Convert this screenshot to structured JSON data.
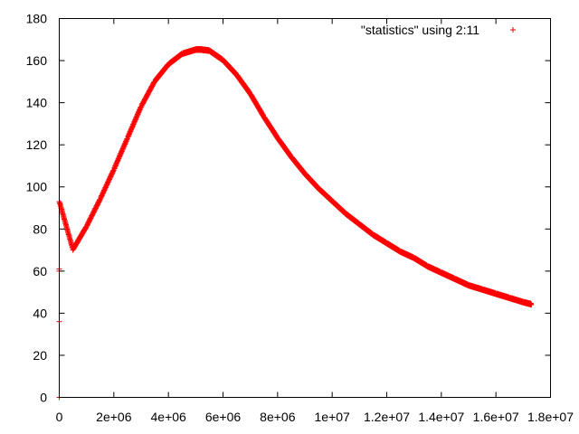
{
  "chart_data": {
    "type": "scatter",
    "title": "",
    "xlabel": "",
    "ylabel": "",
    "xlim": [
      0,
      18000000
    ],
    "ylim": [
      0,
      180
    ],
    "grid": false,
    "legend_position": "top-right",
    "marker": "plus",
    "x_ticks": [
      0,
      2000000,
      4000000,
      6000000,
      8000000,
      10000000,
      12000000,
      14000000,
      16000000,
      18000000
    ],
    "x_tick_labels": [
      "0",
      "2e+06",
      "4e+06",
      "6e+06",
      "8e+06",
      "1e+07",
      "1.2e+07",
      "1.4e+07",
      "1.6e+07",
      "1.8e+07"
    ],
    "y_ticks": [
      0,
      20,
      40,
      60,
      80,
      100,
      120,
      140,
      160,
      180
    ],
    "y_tick_labels": [
      "0",
      "20",
      "40",
      "60",
      "80",
      "100",
      "120",
      "140",
      "160",
      "180"
    ],
    "series": [
      {
        "name": "\"statistics\" using 2:11",
        "color": "#ff0000",
        "x": [
          0,
          0,
          0,
          0,
          0,
          500000,
          1000000,
          1500000,
          2000000,
          2500000,
          3000000,
          3500000,
          4000000,
          4500000,
          5000000,
          5200000,
          5500000,
          6000000,
          6500000,
          7000000,
          7500000,
          8000000,
          8500000,
          9000000,
          9500000,
          10000000,
          10500000,
          11000000,
          11500000,
          12000000,
          12500000,
          13000000,
          13500000,
          14000000,
          14500000,
          15000000,
          15500000,
          16000000,
          16500000,
          17000000,
          17300000
        ],
        "y": [
          0,
          36,
          60,
          61,
          93,
          70,
          81,
          94,
          108,
          123,
          138,
          150,
          158,
          163,
          165,
          165,
          164.5,
          160,
          153,
          144,
          133,
          123,
          114,
          106,
          99,
          93,
          87,
          82,
          77,
          73,
          69,
          66,
          62,
          59,
          56,
          53,
          51,
          49,
          47,
          45,
          44
        ]
      }
    ]
  }
}
